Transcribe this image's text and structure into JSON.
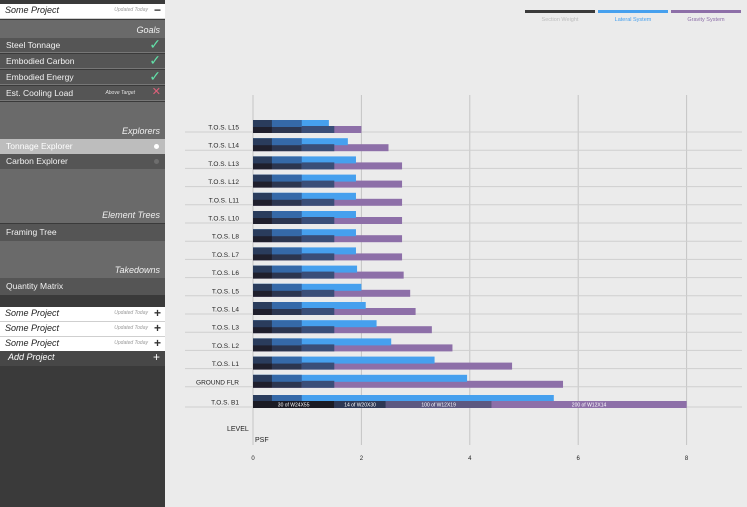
{
  "sidebar": {
    "active_project": {
      "name": "Some Project",
      "status": "Updated Today",
      "toggle": "−"
    },
    "goals_header": "Goals",
    "goals": [
      {
        "label": "Steel Tonnage",
        "status_glyph": "✓",
        "status_color": "#62e0a8"
      },
      {
        "label": "Embodied Carbon",
        "status_glyph": "✓",
        "status_color": "#62e0a8"
      },
      {
        "label": "Embodied Energy",
        "status_glyph": "✓",
        "status_color": "#62e0a8"
      },
      {
        "label": "Est. Cooling Load",
        "sub": "Above Target",
        "status_glyph": "✕",
        "status_color": "#e0607a"
      }
    ],
    "explorers_header": "Explorers",
    "explorers": [
      {
        "label": "Tonnage Explorer",
        "selected": true
      },
      {
        "label": "Carbon Explorer",
        "selected": false
      }
    ],
    "element_trees_header": "Element Trees",
    "element_trees": [
      {
        "label": "Framing Tree"
      }
    ],
    "takedowns_header": "Takedowns",
    "takedowns": [
      {
        "label": "Quantity Matrix"
      }
    ],
    "other_projects": [
      {
        "name": "Some Project",
        "status": "Updated Today",
        "toggle": "+"
      },
      {
        "name": "Some Project",
        "status": "Updated Today",
        "toggle": "+"
      },
      {
        "name": "Some Project",
        "status": "Updated Today",
        "toggle": "+"
      }
    ],
    "add_project": {
      "label": "Add Project",
      "toggle": "+"
    }
  },
  "legend": [
    {
      "label": "Section Weight",
      "color": "#3a3a3a",
      "text_color": "#bdbdbd"
    },
    {
      "label": "Lateral System",
      "color": "#46a0ee",
      "text_color": "#46a0ee"
    },
    {
      "label": "Gravity System",
      "color": "#8d6fa8",
      "text_color": "#8d6fa8"
    }
  ],
  "chart_data": {
    "type": "bar",
    "orientation": "horizontal",
    "stacked_overlay": true,
    "categories": [
      "T.O.S. L15",
      "T.O.S. L14",
      "T.O.S. L13",
      "T.O.S. L12",
      "T.O.S. L11",
      "T.O.S. L10",
      "T.O.S. L8",
      "T.O.S. L7",
      "T.O.S. L6",
      "T.O.S. L5",
      "T.O.S. L4",
      "T.O.S. L3",
      "T.O.S. L2",
      "T.O.S. L1",
      "GROUND FLR",
      "T.O.S. B1"
    ],
    "series": [
      {
        "name": "Lateral System",
        "values": [
          1.4,
          1.75,
          1.9,
          1.9,
          1.9,
          1.9,
          1.9,
          1.9,
          1.92,
          2.0,
          2.08,
          2.28,
          2.55,
          3.35,
          3.95,
          5.55
        ]
      },
      {
        "name": "Gravity System",
        "values": [
          2.0,
          2.5,
          2.75,
          2.75,
          2.75,
          2.75,
          2.75,
          2.75,
          2.78,
          2.9,
          3.0,
          3.3,
          3.68,
          4.78,
          5.72,
          8.0
        ]
      }
    ],
    "b1_segments": [
      {
        "label": "30  of  W24X55",
        "end": 1.5
      },
      {
        "label": "14  of  W20X30",
        "end": 2.45
      },
      {
        "label": "100  of  W12X19",
        "end": 4.4
      },
      {
        "label": "200  of  W12X14",
        "end": 8.0
      }
    ],
    "xticks": [
      0,
      2,
      4,
      6,
      8
    ],
    "xlim": [
      0,
      8
    ],
    "ylabel": "LEVEL",
    "xlabel": "PSF"
  }
}
